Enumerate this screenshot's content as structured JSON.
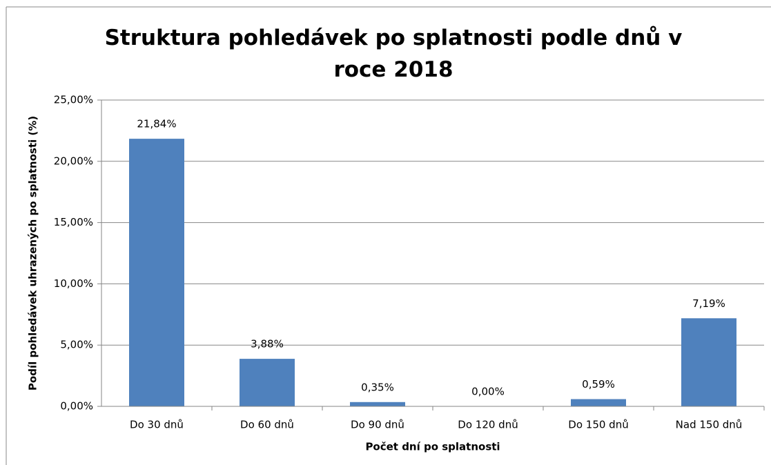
{
  "chart_data": {
    "type": "bar",
    "title": "Struktura pohledávek po splatnosti podle dnů v roce 2018",
    "x_label": "Počet dní po splatnosti",
    "y_label": "Podíl pohledávek uhrazených po splatnosti (%)",
    "categories": [
      "Do 30 dnů",
      "Do 60 dnů",
      "Do 90 dnů",
      "Do 120 dnů",
      "Do 150 dnů",
      "Nad 150 dnů"
    ],
    "values": [
      21.84,
      3.88,
      0.35,
      0,
      0.59,
      7.19
    ],
    "value_labels": [
      "21,84%",
      "3,88%",
      "0,35%",
      "0,00%",
      "0,59%",
      "7,19%"
    ],
    "color": "#4f81bd",
    "ylim": [
      0,
      25
    ],
    "yticks": [
      {
        "value": 0,
        "label": "0,00%"
      },
      {
        "value": 5,
        "label": "5,00%"
      },
      {
        "value": 10,
        "label": "10,00%"
      },
      {
        "value": 15,
        "label": "15,00%"
      },
      {
        "value": 20,
        "label": "20,00%"
      },
      {
        "value": 25,
        "label": "25,00%"
      }
    ],
    "grid": true
  }
}
